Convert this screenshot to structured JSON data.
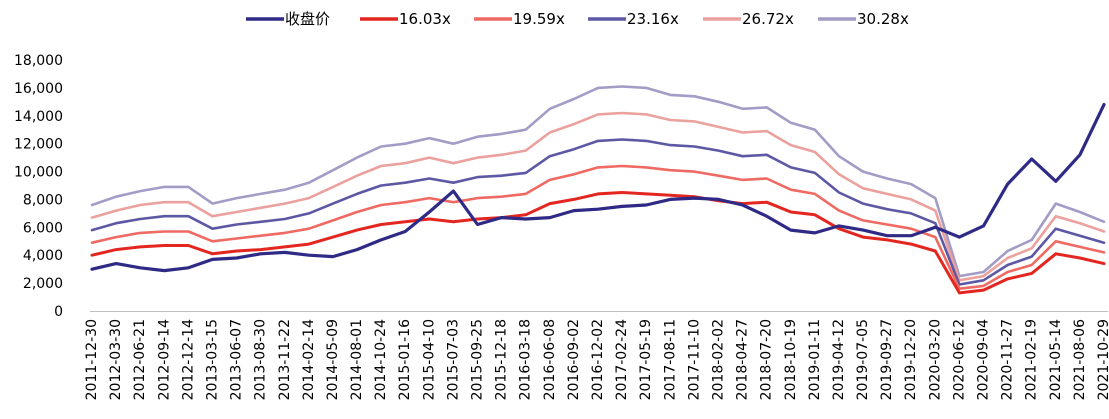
{
  "chart_data": {
    "type": "line",
    "title": "",
    "xlabel": "",
    "ylabel": "",
    "ylim": [
      0,
      18000
    ],
    "yticks": [
      0,
      2000,
      4000,
      6000,
      8000,
      10000,
      12000,
      14000,
      16000,
      18000
    ],
    "ytick_labels": [
      "0",
      "2,000",
      "4,000",
      "6,000",
      "8,000",
      "10,000",
      "12,000",
      "14,000",
      "16,000",
      "18,000"
    ],
    "grid": false,
    "legend_position": "top",
    "x_tick_labels": [
      "2011-12-30",
      "2012-03-30",
      "2012-06-21",
      "2012-09-14",
      "2012-12-14",
      "2013-03-15",
      "2013-06-07",
      "2013-08-30",
      "2013-11-22",
      "2014-02-14",
      "2014-05-09",
      "2014-08-01",
      "2014-10-24",
      "2015-01-16",
      "2015-04-10",
      "2015-07-03",
      "2015-09-25",
      "2015-12-18",
      "2016-03-18",
      "2016-06-08",
      "2016-09-02",
      "2016-12-02",
      "2017-02-24",
      "2017-05-19",
      "2017-08-11",
      "2017-11-10",
      "2018-02-02",
      "2018-04-27",
      "2018-07-20",
      "2018-10-19",
      "2019-01-11",
      "2019-04-12",
      "2019-07-05",
      "2019-09-27",
      "2019-12-20",
      "2020-03-20",
      "2020-06-12",
      "2020-09-04",
      "2020-11-27",
      "2021-02-19",
      "2021-05-14",
      "2021-08-06",
      "2021-10-29"
    ],
    "x": [
      "2011-12-30",
      "2012-03-30",
      "2012-06-21",
      "2012-09-14",
      "2012-12-14",
      "2013-03-15",
      "2013-06-07",
      "2013-08-30",
      "2013-11-22",
      "2014-02-14",
      "2014-05-09",
      "2014-08-01",
      "2014-10-24",
      "2015-01-16",
      "2015-04-10",
      "2015-07-03",
      "2015-09-25",
      "2015-12-18",
      "2016-03-18",
      "2016-06-08",
      "2016-09-02",
      "2016-12-02",
      "2017-02-24",
      "2017-05-19",
      "2017-08-11",
      "2017-11-10",
      "2018-02-02",
      "2018-04-27",
      "2018-07-20",
      "2018-10-19",
      "2019-01-11",
      "2019-04-12",
      "2019-07-05",
      "2019-09-27",
      "2019-12-20",
      "2020-03-20",
      "2020-06-12",
      "2020-09-04",
      "2020-11-27",
      "2021-02-19",
      "2021-05-14",
      "2021-08-06",
      "2021-10-29"
    ],
    "series": [
      {
        "name": "收盘价",
        "color": "#2E2A86",
        "width": 3.2,
        "values": [
          3000,
          3400,
          3100,
          2900,
          3100,
          3700,
          3800,
          4100,
          4200,
          4000,
          3900,
          4400,
          5100,
          5700,
          7100,
          8600,
          6200,
          6700,
          6600,
          6700,
          7200,
          7300,
          7500,
          7600,
          8000,
          8100,
          8000,
          7600,
          6800,
          5800,
          5600,
          6100,
          5800,
          5400,
          5400,
          6000,
          5300,
          6100,
          9100,
          10900,
          9300,
          11200,
          14800
        ]
      },
      {
        "name": "16.03x",
        "color": "#E3261F",
        "width": 3,
        "values": [
          4000,
          4400,
          4600,
          4700,
          4700,
          4100,
          4300,
          4400,
          4600,
          4800,
          5300,
          5800,
          6200,
          6400,
          6600,
          6400,
          6600,
          6700,
          6900,
          7700,
          8000,
          8400,
          8500,
          8400,
          8300,
          8200,
          7900,
          7700,
          7800,
          7100,
          6900,
          5900,
          5300,
          5100,
          4800,
          4300,
          1300,
          1500,
          2300,
          2700,
          4100,
          3800,
          3400
        ]
      },
      {
        "name": "19.59x",
        "color": "#EE6A63",
        "width": 2.6,
        "values": [
          4900,
          5300,
          5600,
          5700,
          5700,
          5000,
          5200,
          5400,
          5600,
          5900,
          6500,
          7100,
          7600,
          7800,
          8100,
          7800,
          8100,
          8200,
          8400,
          9400,
          9800,
          10300,
          10400,
          10300,
          10100,
          10000,
          9700,
          9400,
          9500,
          8700,
          8400,
          7200,
          6500,
          6200,
          5900,
          5300,
          1600,
          1800,
          2800,
          3300,
          5000,
          4600,
          4200
        ]
      },
      {
        "name": "23.16x",
        "color": "#5D58A4",
        "width": 2.6,
        "values": [
          5800,
          6300,
          6600,
          6800,
          6800,
          5900,
          6200,
          6400,
          6600,
          7000,
          7700,
          8400,
          9000,
          9200,
          9500,
          9200,
          9600,
          9700,
          9900,
          11100,
          11600,
          12200,
          12300,
          12200,
          11900,
          11800,
          11500,
          11100,
          11200,
          10300,
          9900,
          8500,
          7700,
          7300,
          7000,
          6300,
          1900,
          2200,
          3300,
          3900,
          5900,
          5400,
          4900
        ]
      },
      {
        "name": "26.72x",
        "color": "#EBA19D",
        "width": 2.6,
        "values": [
          6700,
          7200,
          7600,
          7800,
          7800,
          6800,
          7100,
          7400,
          7700,
          8100,
          8900,
          9700,
          10400,
          10600,
          11000,
          10600,
          11000,
          11200,
          11500,
          12800,
          13400,
          14100,
          14200,
          14100,
          13700,
          13600,
          13200,
          12800,
          12900,
          11900,
          11400,
          9800,
          8800,
          8400,
          8000,
          7200,
          2200,
          2500,
          3800,
          4500,
          6800,
          6300,
          5700
        ]
      },
      {
        "name": "30.28x",
        "color": "#A29CC6",
        "width": 2.6,
        "values": [
          7600,
          8200,
          8600,
          8900,
          8900,
          7700,
          8100,
          8400,
          8700,
          9200,
          10100,
          11000,
          11800,
          12000,
          12400,
          12000,
          12500,
          12700,
          13000,
          14500,
          15200,
          16000,
          16100,
          16000,
          15500,
          15400,
          15000,
          14500,
          14600,
          13500,
          13000,
          11100,
          10000,
          9500,
          9100,
          8100,
          2500,
          2800,
          4300,
          5100,
          7700,
          7100,
          6400
        ]
      }
    ]
  }
}
